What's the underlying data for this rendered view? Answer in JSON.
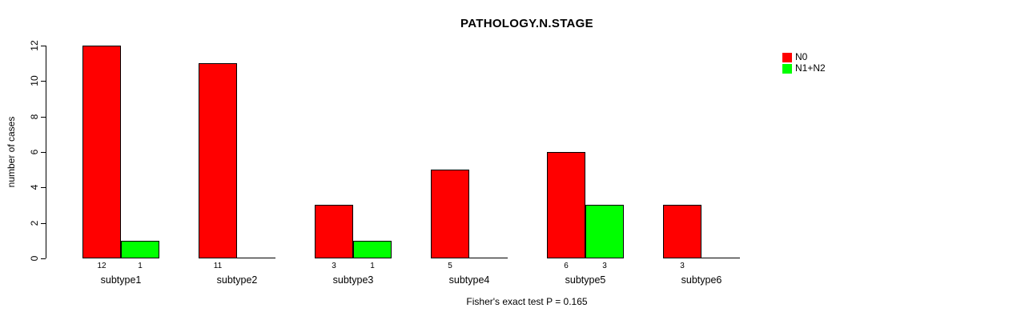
{
  "title": "PATHOLOGY.N.STAGE",
  "ylabel": "number of cases",
  "annotation": "Fisher's exact test P = 0.165",
  "colors": {
    "n0": "#FF0000",
    "n1n2": "#00FF00",
    "axis": "#000000",
    "background": "#FFFFFF"
  },
  "chart_data": {
    "type": "bar",
    "grouped": true,
    "title": "PATHOLOGY.N.STAGE",
    "xlabel": "",
    "ylabel": "number of cases",
    "categories": [
      "subtype1",
      "subtype2",
      "subtype3",
      "subtype4",
      "subtype5",
      "subtype6"
    ],
    "series": [
      {
        "name": "N0",
        "color": "#FF0000",
        "values": [
          12,
          11,
          3,
          5,
          6,
          3
        ]
      },
      {
        "name": "N1+N2",
        "color": "#00FF00",
        "values": [
          1,
          0,
          1,
          0,
          3,
          0
        ]
      }
    ],
    "bar_value_labels": [
      [
        "12",
        "1"
      ],
      [
        "11",
        ""
      ],
      [
        "3",
        "1"
      ],
      [
        "5",
        ""
      ],
      [
        "6",
        "3"
      ],
      [
        "3",
        ""
      ]
    ],
    "ylim": [
      0,
      12
    ],
    "yticks": [
      0,
      2,
      4,
      6,
      8,
      10,
      12
    ],
    "grid": false,
    "legend_position": "topright",
    "annotation": "Fisher's exact test P = 0.165"
  }
}
